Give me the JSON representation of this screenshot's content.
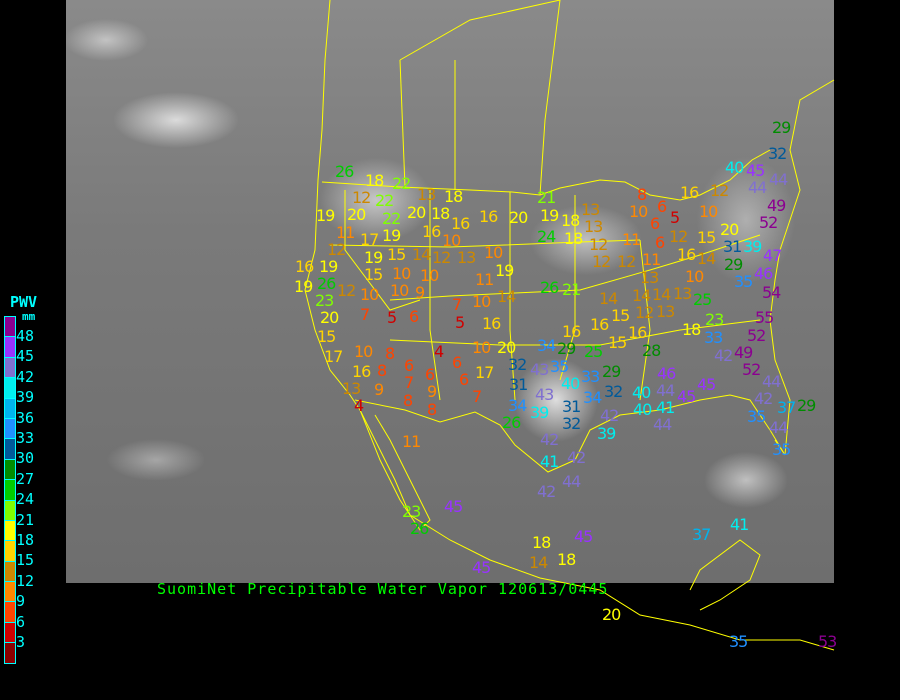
{
  "title": "SuomiNet Precipitable Water Vapor 120613/0445",
  "legend": {
    "title": "PWV",
    "unit": "mm",
    "labels": [
      "48",
      "45",
      "42",
      "39",
      "36",
      "33",
      "30",
      "27",
      "24",
      "21",
      "18",
      "15",
      "12",
      "9",
      "6",
      "3"
    ],
    "colors": [
      "#8b0090",
      "#9933ff",
      "#8070d0",
      "#00eeee",
      "#00b4ee",
      "#2090ff",
      "#005a9a",
      "#008c00",
      "#00cc00",
      "#80ff00",
      "#ffff00",
      "#ffd400",
      "#cc8800",
      "#ff8800",
      "#ff4400",
      "#d00000",
      "#8b0000"
    ]
  },
  "stations": [
    26,
    18,
    22,
    13,
    18,
    12,
    22,
    19,
    20,
    22,
    20,
    18,
    11,
    19,
    16,
    16,
    16,
    20,
    19,
    21,
    12,
    17,
    19,
    15,
    14,
    12,
    13,
    10,
    10,
    16,
    19,
    15,
    10,
    10,
    19,
    11,
    19,
    26,
    12,
    10,
    10,
    9,
    26,
    21,
    23,
    20,
    7,
    5,
    6,
    7,
    5,
    10,
    14,
    16,
    15,
    17,
    10,
    8,
    4,
    10,
    20,
    16,
    8,
    6,
    6,
    6,
    6,
    17,
    32,
    34,
    43,
    13,
    9,
    7,
    9,
    31,
    43,
    7,
    4,
    8,
    8,
    34,
    39,
    26,
    29,
    32,
    40,
    45,
    44,
    16,
    12,
    44,
    8,
    6,
    5,
    10,
    6,
    10,
    49,
    52,
    18,
    13,
    13,
    18,
    24,
    12,
    11,
    6,
    12,
    15,
    20,
    31,
    39,
    12,
    12,
    11,
    16,
    14,
    29,
    47,
    46,
    35,
    13,
    10,
    14,
    54,
    25,
    13,
    14,
    14,
    15,
    12,
    13,
    16,
    16,
    18,
    23,
    55,
    16,
    15,
    28,
    33,
    42,
    49,
    52,
    29,
    35,
    25,
    29,
    40,
    33,
    46,
    52,
    34,
    32,
    45,
    40,
    44,
    45,
    44,
    42,
    31,
    40,
    41,
    35,
    37,
    29,
    32,
    42,
    39,
    44,
    44,
    42,
    35,
    41,
    42,
    42,
    44,
    45,
    26,
    18,
    14,
    45,
    37,
    41,
    45,
    18,
    20,
    35,
    53,
    11,
    23
  ]
}
